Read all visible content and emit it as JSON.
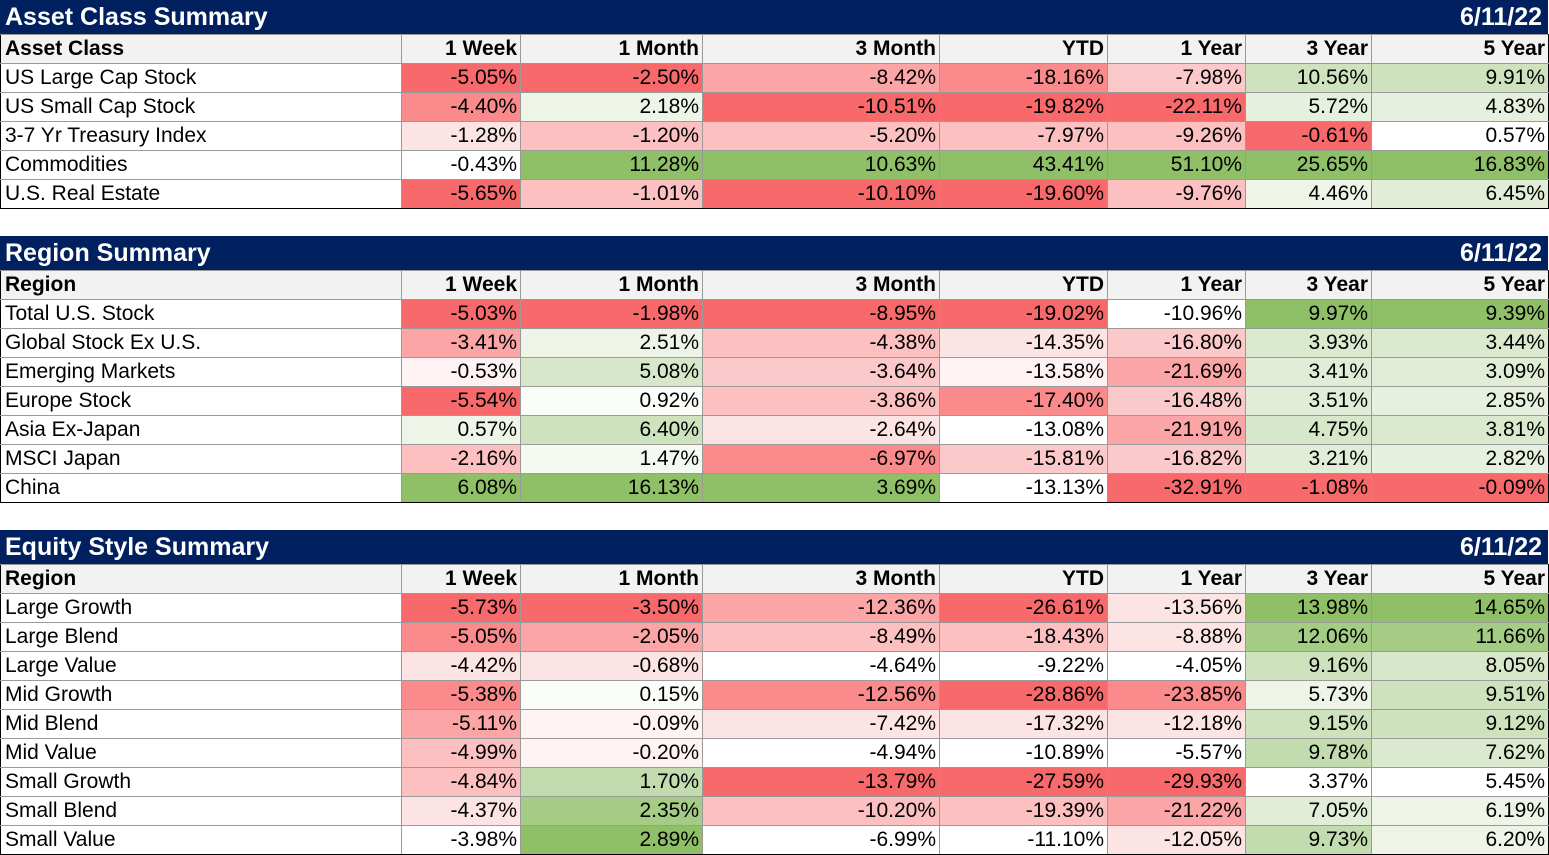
{
  "columns": [
    "1 Week",
    "1 Month",
    "3 Month",
    "YTD",
    "1 Year",
    "3 Year",
    "5 Year"
  ],
  "sections": [
    {
      "title": "Asset Class Summary",
      "date": "6/11/22",
      "label_header": "Asset Class",
      "rows": [
        {
          "label": "US Large Cap Stock",
          "values": [
            "-5.05%",
            "-2.50%",
            "-8.42%",
            "-18.16%",
            "-7.98%",
            "10.56%",
            "9.91%"
          ],
          "colors": [
            "#f8696b",
            "#f8696b",
            "#fba5a6",
            "#fa8a8b",
            "#fcc9ca",
            "#cde2bd",
            "#cde2bd"
          ]
        },
        {
          "label": "US Small Cap Stock",
          "values": [
            "-4.40%",
            "2.18%",
            "-10.51%",
            "-19.82%",
            "-22.11%",
            "5.72%",
            "4.83%"
          ],
          "colors": [
            "#fa8a8b",
            "#eef5e8",
            "#f8696b",
            "#f8696b",
            "#f8696b",
            "#e6f0de",
            "#e6f0de"
          ]
        },
        {
          "label": "3-7 Yr Treasury Index",
          "values": [
            "-1.28%",
            "-1.20%",
            "-5.20%",
            "-7.97%",
            "-9.26%",
            "-0.61%",
            "0.57%"
          ],
          "colors": [
            "#fde4e4",
            "#fcc0c1",
            "#fcc0c1",
            "#fcc0c1",
            "#fcc0c1",
            "#f8696b",
            "#ffffff"
          ]
        },
        {
          "label": "Commodities",
          "values": [
            "-0.43%",
            "11.28%",
            "10.63%",
            "43.41%",
            "51.10%",
            "25.65%",
            "16.83%"
          ],
          "colors": [
            "#ffffff",
            "#8fbf67",
            "#8fbf67",
            "#8fbf67",
            "#8fbf67",
            "#8fbf67",
            "#8fbf67"
          ]
        },
        {
          "label": "U.S. Real Estate",
          "values": [
            "-5.65%",
            "-1.01%",
            "-10.10%",
            "-19.60%",
            "-9.76%",
            "4.46%",
            "6.45%"
          ],
          "colors": [
            "#f8696b",
            "#fcc0c1",
            "#f8696b",
            "#f8696b",
            "#fcc0c1",
            "#eef5e8",
            "#e1edd6"
          ]
        }
      ]
    },
    {
      "title": "Region Summary",
      "date": "6/11/22",
      "label_header": "Region",
      "rows": [
        {
          "label": "Total U.S. Stock",
          "values": [
            "-5.03%",
            "-1.98%",
            "-8.95%",
            "-19.02%",
            "-10.96%",
            "9.97%",
            "9.39%"
          ],
          "colors": [
            "#f8696b",
            "#f8696b",
            "#f8696b",
            "#f8696b",
            "#ffffff",
            "#8fbf67",
            "#8fbf67"
          ]
        },
        {
          "label": "Global Stock Ex U.S.",
          "values": [
            "-3.41%",
            "2.51%",
            "-4.38%",
            "-14.35%",
            "-16.80%",
            "3.93%",
            "3.44%"
          ],
          "colors": [
            "#fba5a6",
            "#eef5e8",
            "#fcc0c1",
            "#fde4e4",
            "#fcc9ca",
            "#dbeacf",
            "#dbeacf"
          ]
        },
        {
          "label": "Emerging Markets",
          "values": [
            "-0.53%",
            "5.08%",
            "-3.64%",
            "-13.58%",
            "-21.69%",
            "3.41%",
            "3.09%"
          ],
          "colors": [
            "#fef2f2",
            "#d7e7c9",
            "#fcc9ca",
            "#fef2f2",
            "#fba5a6",
            "#e1edd6",
            "#e1edd6"
          ]
        },
        {
          "label": "Europe Stock",
          "values": [
            "-5.54%",
            "0.92%",
            "-3.86%",
            "-17.40%",
            "-16.48%",
            "3.51%",
            "2.85%"
          ],
          "colors": [
            "#f8696b",
            "#fbfdf9",
            "#fcc0c1",
            "#fa8a8b",
            "#fcc9ca",
            "#e1edd6",
            "#e6f0de"
          ]
        },
        {
          "label": "Asia Ex-Japan",
          "values": [
            "0.57%",
            "6.40%",
            "-2.64%",
            "-13.08%",
            "-21.91%",
            "4.75%",
            "3.81%"
          ],
          "colors": [
            "#eef5e8",
            "#cde2bd",
            "#fde4e4",
            "#ffffff",
            "#fba5a6",
            "#d7e7c9",
            "#dbeacf"
          ]
        },
        {
          "label": "MSCI Japan",
          "values": [
            "-2.16%",
            "1.47%",
            "-6.97%",
            "-15.81%",
            "-16.82%",
            "3.21%",
            "2.82%"
          ],
          "colors": [
            "#fcc0c1",
            "#f4f9f1",
            "#fa8a8b",
            "#fcc9ca",
            "#fcc9ca",
            "#e1edd6",
            "#e6f0de"
          ]
        },
        {
          "label": "China",
          "values": [
            "6.08%",
            "16.13%",
            "3.69%",
            "-13.13%",
            "-32.91%",
            "-1.08%",
            "-0.09%"
          ],
          "colors": [
            "#8fbf67",
            "#8fbf67",
            "#8fbf67",
            "#ffffff",
            "#f8696b",
            "#f8696b",
            "#f8696b"
          ]
        }
      ]
    },
    {
      "title": "Equity Style Summary",
      "date": "6/11/22",
      "label_header": "Region",
      "rows": [
        {
          "label": "Large Growth",
          "values": [
            "-5.73%",
            "-3.50%",
            "-12.36%",
            "-26.61%",
            "-13.56%",
            "13.98%",
            "14.65%"
          ],
          "colors": [
            "#f8696b",
            "#f8696b",
            "#fba5a6",
            "#f8696b",
            "#fde4e4",
            "#8fbf67",
            "#8fbf67"
          ]
        },
        {
          "label": "Large Blend",
          "values": [
            "-5.05%",
            "-2.05%",
            "-8.49%",
            "-18.43%",
            "-8.88%",
            "12.06%",
            "11.66%"
          ],
          "colors": [
            "#fa8a8b",
            "#fba5a6",
            "#fcc0c1",
            "#fcc0c1",
            "#fde4e4",
            "#a5cc85",
            "#a5cc85"
          ]
        },
        {
          "label": "Large Value",
          "values": [
            "-4.42%",
            "-0.68%",
            "-4.64%",
            "-9.22%",
            "-4.05%",
            "9.16%",
            "8.05%"
          ],
          "colors": [
            "#fde4e4",
            "#fde4e4",
            "#ffffff",
            "#ffffff",
            "#ffffff",
            "#cde2bd",
            "#d7e7c9"
          ]
        },
        {
          "label": "Mid Growth",
          "values": [
            "-5.38%",
            "0.15%",
            "-12.56%",
            "-28.86%",
            "-23.85%",
            "5.73%",
            "9.51%"
          ],
          "colors": [
            "#fa8a8b",
            "#fbfdf9",
            "#fa8a8b",
            "#f8696b",
            "#fa8a8b",
            "#eef5e8",
            "#cde2bd"
          ]
        },
        {
          "label": "Mid Blend",
          "values": [
            "-5.11%",
            "-0.09%",
            "-7.42%",
            "-17.32%",
            "-12.18%",
            "9.15%",
            "9.12%"
          ],
          "colors": [
            "#fba5a6",
            "#fef2f2",
            "#fde4e4",
            "#fde4e4",
            "#fde4e4",
            "#cde2bd",
            "#cde2bd"
          ]
        },
        {
          "label": "Mid Value",
          "values": [
            "-4.99%",
            "-0.20%",
            "-4.94%",
            "-10.89%",
            "-5.57%",
            "9.78%",
            "7.62%"
          ],
          "colors": [
            "#fcc0c1",
            "#fef2f2",
            "#ffffff",
            "#ffffff",
            "#ffffff",
            "#c3dcaf",
            "#dbeacf"
          ]
        },
        {
          "label": "Small Growth",
          "values": [
            "-4.84%",
            "1.70%",
            "-13.79%",
            "-27.59%",
            "-29.93%",
            "3.37%",
            "5.45%"
          ],
          "colors": [
            "#fcc0c1",
            "#c3dcaf",
            "#f8696b",
            "#f8696b",
            "#f8696b",
            "#ffffff",
            "#ffffff"
          ]
        },
        {
          "label": "Small Blend",
          "values": [
            "-4.37%",
            "2.35%",
            "-10.20%",
            "-19.39%",
            "-21.22%",
            "7.05%",
            "6.19%"
          ],
          "colors": [
            "#fde4e4",
            "#a5cc85",
            "#fcc0c1",
            "#fcc0c1",
            "#fba5a6",
            "#e1edd6",
            "#eef5e8"
          ]
        },
        {
          "label": "Small Value",
          "values": [
            "-3.98%",
            "2.89%",
            "-6.99%",
            "-11.10%",
            "-12.05%",
            "9.73%",
            "6.20%"
          ],
          "colors": [
            "#ffffff",
            "#8fbf67",
            "#ffffff",
            "#ffffff",
            "#fde4e4",
            "#c3dcaf",
            "#eef5e8"
          ]
        }
      ]
    }
  ]
}
